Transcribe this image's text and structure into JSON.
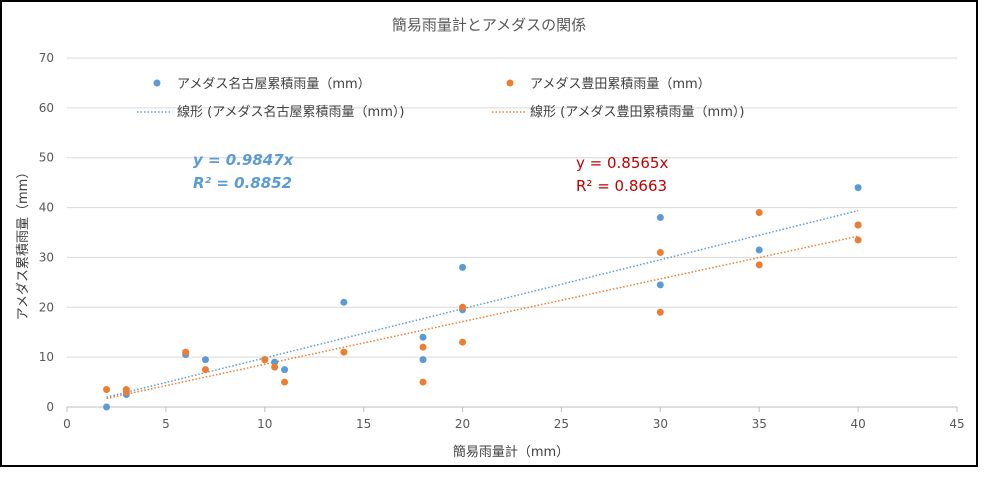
{
  "chart_data": {
    "type": "scatter",
    "title": "簡易雨量計とアメダスの関係",
    "xlabel": "簡易雨量計（mm）",
    "ylabel": "アメダス累積雨量（mm）",
    "xlim": [
      0,
      45
    ],
    "ylim": [
      0,
      70
    ],
    "xticks": [
      "0",
      "5",
      "10",
      "15",
      "20",
      "25",
      "30",
      "35",
      "40",
      "45"
    ],
    "yticks": [
      "0",
      "10",
      "20",
      "30",
      "40",
      "50",
      "60",
      "70"
    ],
    "grid": true,
    "legend_position": "top",
    "series": [
      {
        "name": "アメダス名古屋累積雨量（mm）",
        "trend_name": "線形 (アメダス名古屋累積雨量（mm）)",
        "color": "#5b9bd5",
        "points": [
          [
            2,
            0
          ],
          [
            3,
            2.5
          ],
          [
            6,
            10.5
          ],
          [
            7,
            9.5
          ],
          [
            10,
            9.5
          ],
          [
            10.5,
            9
          ],
          [
            11,
            7.5
          ],
          [
            14,
            21
          ],
          [
            18,
            14
          ],
          [
            18,
            9.5
          ],
          [
            20,
            28
          ],
          [
            20,
            19.5
          ],
          [
            30,
            38
          ],
          [
            30,
            24.5
          ],
          [
            35,
            31.5
          ],
          [
            40,
            44
          ],
          [
            40,
            36.5
          ]
        ],
        "slope": 0.9847,
        "equation": "y = 0.9847x",
        "r2": "R² = 0.8852"
      },
      {
        "name": "アメダス豊田累積雨量（mm）",
        "trend_name": "線形 (アメダス豊田累積雨量（mm）)",
        "color": "#ed7d31",
        "points": [
          [
            2,
            3.5
          ],
          [
            3,
            3.5
          ],
          [
            3,
            3
          ],
          [
            6,
            11
          ],
          [
            7,
            7.5
          ],
          [
            10,
            9.5
          ],
          [
            10.5,
            8
          ],
          [
            11,
            5
          ],
          [
            14,
            11
          ],
          [
            18,
            12
          ],
          [
            18,
            5
          ],
          [
            20,
            20
          ],
          [
            20,
            13
          ],
          [
            30,
            31
          ],
          [
            30,
            19
          ],
          [
            35,
            39
          ],
          [
            35,
            28.5
          ],
          [
            40,
            36.5
          ],
          [
            40,
            33.5
          ]
        ],
        "slope": 0.8565,
        "equation": "y = 0.8565x",
        "r2": "R² = 0.8663"
      }
    ],
    "annotation_colors": {
      "blue": "#5b9bd5",
      "red": "#c00000"
    }
  }
}
